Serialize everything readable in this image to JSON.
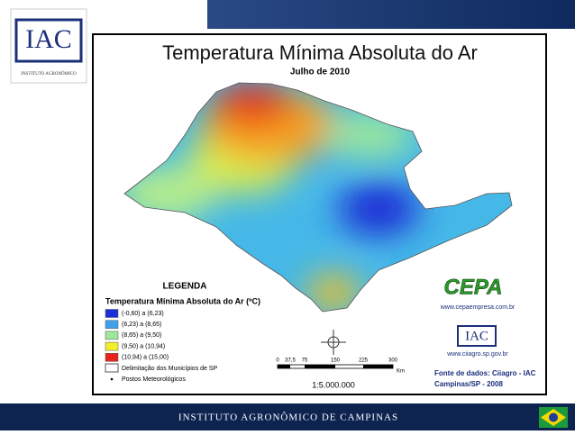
{
  "logo": {
    "name": "IAC",
    "subtitle": "INSTITUTO AGRONÔMICO"
  },
  "map": {
    "title": "Temperatura Mínima Absoluta do Ar",
    "subtitle": "Julho de 2010",
    "legend": {
      "heading": "LEGENDA",
      "title": "Temperatura Mínima Absoluta do Ar (ºC)",
      "items": [
        {
          "label": "(-0,60) a (6,23)",
          "color": "#1a2fd6"
        },
        {
          "label": "(6,23) a (8,65)",
          "color": "#3fa0ec"
        },
        {
          "label": "(8,65) a (9,50)",
          "color": "#9ee89a"
        },
        {
          "label": "(9,50) a (10,94)",
          "color": "#f2ee2a"
        },
        {
          "label": "(10,94) a (15,00)",
          "color": "#e8231c"
        }
      ],
      "boundary": "Delimitação dos Municípios de SP",
      "stations": "Postos Meteorológicos"
    },
    "scale": {
      "ticks": [
        "0",
        "37,5",
        "75",
        "150",
        "225",
        "300"
      ],
      "unit": "Km",
      "ratio": "1:5.000.000"
    },
    "credits": {
      "cepa": "CEPA",
      "cepa_url": "www.cepaempresa.com.br",
      "iac": "IAC",
      "ciiagro_url": "www.ciiagro.sp.gov.br",
      "source": "Fonte de dados: Ciiagro - IAC",
      "place": "Campinas/SP - 2008"
    }
  },
  "footer": {
    "text": "INSTITUTO AGRONÔMICO DE CAMPINAS"
  }
}
